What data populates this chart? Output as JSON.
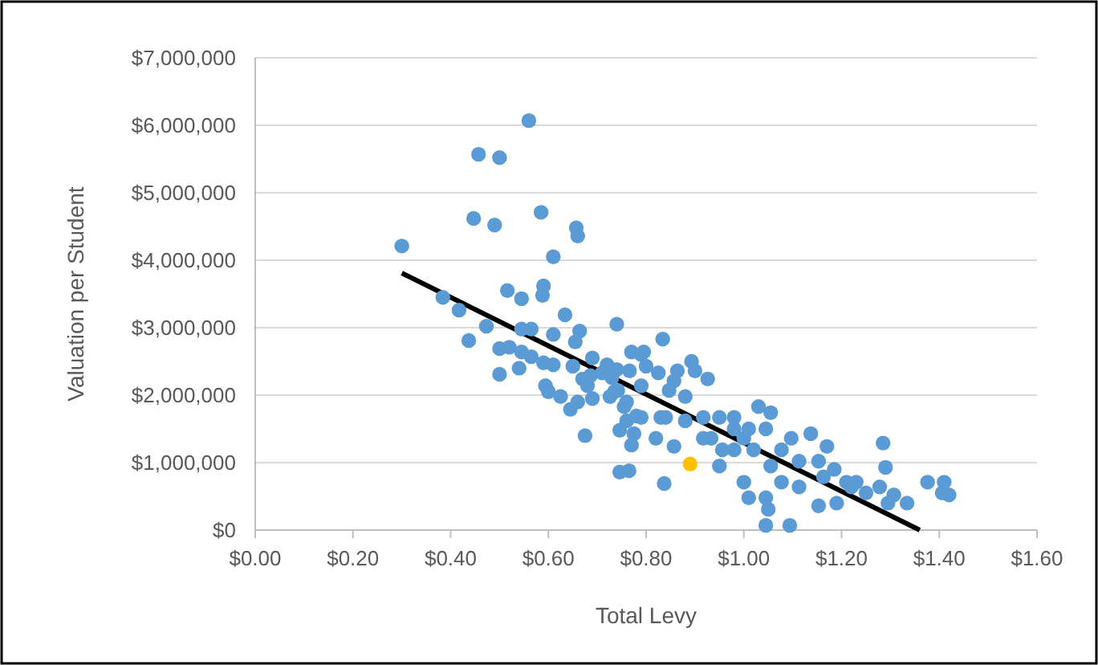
{
  "chart_data": {
    "type": "scatter",
    "xlabel": "Total Levy",
    "ylabel": "Valuation per Student",
    "xlim": [
      0,
      1.6
    ],
    "ylim": [
      0,
      7000000
    ],
    "xticks": [
      {
        "value": 0,
        "label": "$0.00"
      },
      {
        "value": 0.2,
        "label": "$0.20"
      },
      {
        "value": 0.4,
        "label": "$0.40"
      },
      {
        "value": 0.6,
        "label": "$0.60"
      },
      {
        "value": 0.8,
        "label": "$0.80"
      },
      {
        "value": 1,
        "label": "$1.00"
      },
      {
        "value": 1.2,
        "label": "$1.20"
      },
      {
        "value": 1.4,
        "label": "$1.40"
      },
      {
        "value": 1.6,
        "label": "$1.60"
      }
    ],
    "yticks": [
      {
        "value": 0,
        "label": "$0"
      },
      {
        "value": 1000000,
        "label": "$1,000,000"
      },
      {
        "value": 2000000,
        "label": "$2,000,000"
      },
      {
        "value": 3000000,
        "label": "$3,000,000"
      },
      {
        "value": 4000000,
        "label": "$4,000,000"
      },
      {
        "value": 5000000,
        "label": "$5,000,000"
      },
      {
        "value": 6000000,
        "label": "$6,000,000"
      },
      {
        "value": 7000000,
        "label": "$7,000,000"
      }
    ],
    "grid": "y",
    "marker": "circle",
    "series": [
      {
        "type": "scatter",
        "color": "#5b9bd5",
        "x": [
          0.3,
          0.56,
          0.457,
          0.5,
          0.447,
          0.49,
          0.585,
          0.657,
          0.66,
          0.61,
          0.384,
          0.417,
          0.516,
          0.545,
          0.59,
          0.588,
          0.473,
          0.437,
          0.545,
          0.565,
          0.634,
          0.61,
          0.664,
          0.655,
          0.74,
          0.5,
          0.52,
          0.5,
          0.545,
          0.565,
          0.54,
          0.59,
          0.594,
          0.6,
          0.625,
          0.645,
          0.675,
          0.65,
          0.67,
          0.686,
          0.69,
          0.755,
          0.78,
          0.84,
          0.825,
          0.746,
          0.766,
          0.79,
          0.79,
          0.834,
          0.77,
          0.795,
          0.8,
          0.893,
          0.9,
          0.926,
          0.864,
          0.857,
          0.746,
          0.77,
          0.765,
          0.837,
          0.857,
          0.82,
          0.88,
          0.95,
          0.95,
          1.0,
          1.01,
          1.045,
          1.05,
          1.045,
          1.094,
          1.03,
          1.055,
          0.98,
          1.01,
          1.077,
          1.097,
          1.137,
          1.17,
          1.185,
          1.153,
          1.19,
          1.113,
          1.21,
          1.23,
          1.25,
          1.285,
          1.29,
          1.278,
          1.307,
          1.334,
          1.376,
          1.41,
          1.406,
          1.42,
          1.295,
          0.79,
          0.76,
          0.83,
          0.847,
          0.88,
          0.917,
          0.933,
          0.98,
          1.0,
          1.02,
          1.045,
          1.077,
          1.055,
          1.113,
          1.153,
          1.163,
          1.22,
          0.956,
          0.98,
          0.917,
          0.726,
          0.742,
          0.68,
          0.71,
          0.73,
          0.69,
          0.72,
          0.66,
          0.61,
          0.735,
          0.775,
          0.76,
          0.74
        ],
        "values": [
          4210000,
          6070000,
          5570000,
          5520000,
          4620000,
          4520000,
          4710000,
          4480000,
          4360000,
          4050000,
          3450000,
          3260000,
          3550000,
          3430000,
          3620000,
          3480000,
          3020000,
          2810000,
          2980000,
          2980000,
          3190000,
          2900000,
          2950000,
          2790000,
          3050000,
          2690000,
          2710000,
          2310000,
          2640000,
          2570000,
          2400000,
          2480000,
          2140000,
          2050000,
          1980000,
          1790000,
          1400000,
          2430000,
          2240000,
          2290000,
          1950000,
          1830000,
          1690000,
          1670000,
          2330000,
          860000,
          2360000,
          2140000,
          2600000,
          2830000,
          2640000,
          2640000,
          2430000,
          2500000,
          2360000,
          2240000,
          2360000,
          2210000,
          1480000,
          1260000,
          880000,
          690000,
          1240000,
          1360000,
          1620000,
          1670000,
          950000,
          710000,
          480000,
          480000,
          310000,
          70000,
          70000,
          1830000,
          1740000,
          1670000,
          1500000,
          710000,
          1360000,
          1430000,
          1240000,
          900000,
          360000,
          400000,
          640000,
          710000,
          710000,
          550000,
          1290000,
          930000,
          640000,
          520000,
          400000,
          710000,
          710000,
          550000,
          520000,
          400000,
          1670000,
          1900000,
          1670000,
          2070000,
          1980000,
          1670000,
          1360000,
          1500000,
          1360000,
          1190000,
          1500000,
          1190000,
          950000,
          1020000,
          1020000,
          790000,
          640000,
          1190000,
          1190000,
          1360000,
          1980000,
          2070000,
          2140000,
          2330000,
          2260000,
          2550000,
          2450000,
          1900000,
          2450000,
          2050000,
          1430000,
          1620000,
          2380000
        ]
      },
      {
        "type": "scatter",
        "color": "#ffc000",
        "x": [
          0.89
        ],
        "values": [
          980000
        ]
      },
      {
        "type": "line",
        "color": "#000000",
        "marker": "none",
        "x": [
          0.3,
          1.36
        ],
        "values": [
          3810000,
          0
        ]
      }
    ]
  }
}
